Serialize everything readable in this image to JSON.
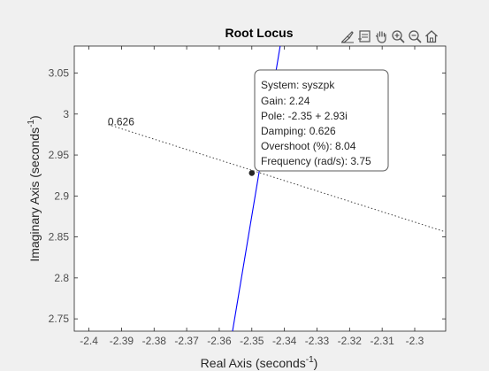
{
  "chart_data": {
    "type": "line",
    "title": "Root Locus",
    "xlabel_main": "Real Axis (seconds",
    "xlabel_sup": "-1",
    "xlabel_end": ")",
    "ylabel_main": "Imaginary Axis (seconds",
    "ylabel_sup": "-1",
    "ylabel_end": ")",
    "xlim": [
      -2.4045,
      -2.2905
    ],
    "ylim": [
      2.735,
      3.083
    ],
    "xticks": [
      -2.4,
      -2.39,
      -2.38,
      -2.37,
      -2.36,
      -2.35,
      -2.34,
      -2.33,
      -2.32,
      -2.31,
      -2.3
    ],
    "xtick_labels": [
      "-2.4",
      "-2.39",
      "-2.38",
      "-2.37",
      "-2.36",
      "-2.35",
      "-2.34",
      "-2.33",
      "-2.32",
      "-2.31",
      "-2.3"
    ],
    "yticks": [
      2.75,
      2.8,
      2.85,
      2.9,
      2.95,
      3.0,
      3.05
    ],
    "ytick_labels": [
      "2.75",
      "2.8",
      "2.85",
      "2.9",
      "2.95",
      "3",
      "3.05"
    ],
    "grid": false,
    "series": [
      {
        "color": "#0000ff",
        "x": [
          -2.35592,
          -2.3413
        ],
        "y": [
          2.735,
          3.083
        ]
      }
    ],
    "damping_line": {
      "label": "0.626",
      "color": "#404040",
      "x": [
        -2.39408,
        -2.2905
      ],
      "y": [
        2.9872,
        2.8561
      ]
    },
    "selected_point": {
      "x": -2.35,
      "y": 2.928
    },
    "datatip": {
      "lines": [
        "System: syszpk",
        "Gain: 2.24",
        "Pole: -2.35 + 2.93i",
        "Damping: 0.626",
        "Overshoot (%): 8.04",
        "Frequency (rad/s): 3.75"
      ]
    }
  },
  "toolbar": {
    "icons": [
      "brush-icon",
      "data-tips-icon",
      "pan-icon",
      "zoom-in-icon",
      "zoom-out-icon",
      "home-icon"
    ]
  }
}
